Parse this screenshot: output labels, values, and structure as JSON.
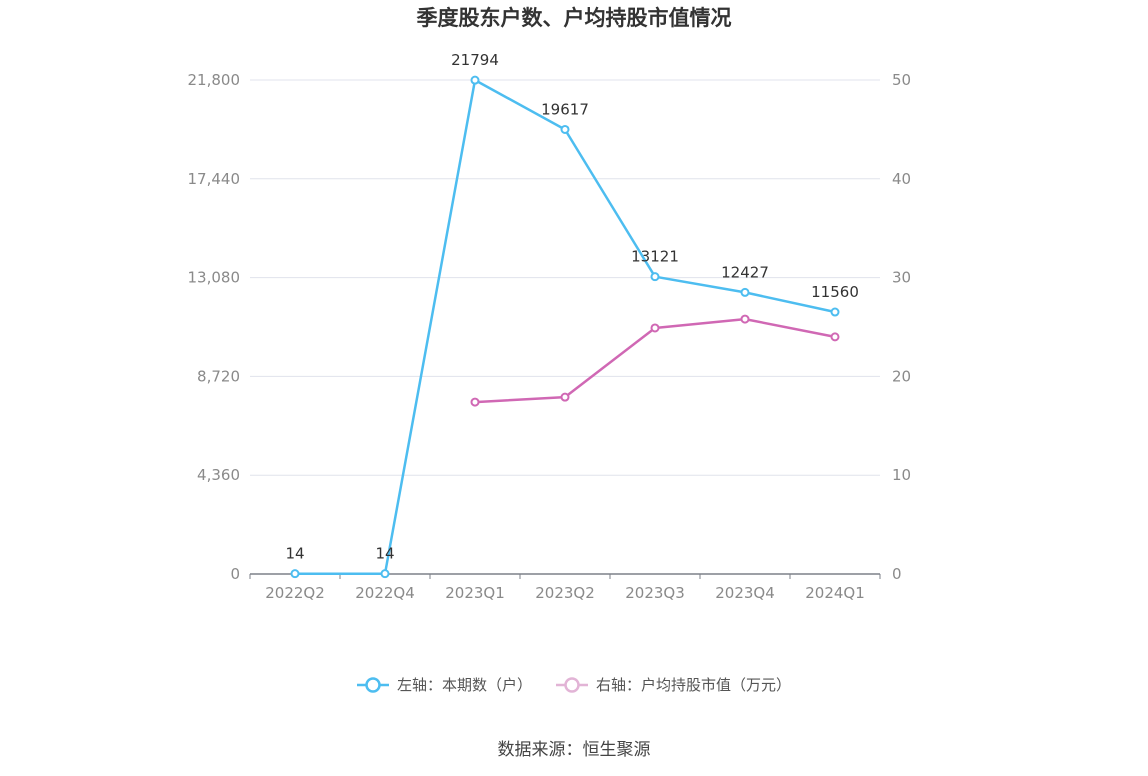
{
  "chart_data": {
    "type": "line",
    "title": "季度股东户数、户均持股市值情况",
    "categories": [
      "2022Q2",
      "2022Q4",
      "2023Q1",
      "2023Q2",
      "2023Q3",
      "2023Q4",
      "2024Q1"
    ],
    "series": [
      {
        "name": "左轴：本期数（户）",
        "axis": "left",
        "color": "#4dbdf0",
        "values": [
          14,
          14,
          21794,
          19617,
          13121,
          12427,
          11560
        ],
        "data_labels": [
          "14",
          "14",
          "21794",
          "19617",
          "13121",
          "12427",
          "11560"
        ]
      },
      {
        "name": "右轴：户均持股市值（万元）",
        "axis": "right",
        "color": "#d068b4",
        "values": [
          null,
          null,
          17.4,
          17.9,
          24.9,
          25.8,
          24.0
        ]
      }
    ],
    "y_left": {
      "ticks": [
        "0",
        "4,360",
        "8,720",
        "13,080",
        "17,440",
        "21,800"
      ],
      "min": 0,
      "max": 21800
    },
    "y_right": {
      "ticks": [
        "0",
        "10",
        "20",
        "30",
        "40",
        "50"
      ],
      "min": 0,
      "max": 50
    },
    "grid": true,
    "legend_position": "bottom"
  },
  "source": "数据来源：恒生聚源"
}
